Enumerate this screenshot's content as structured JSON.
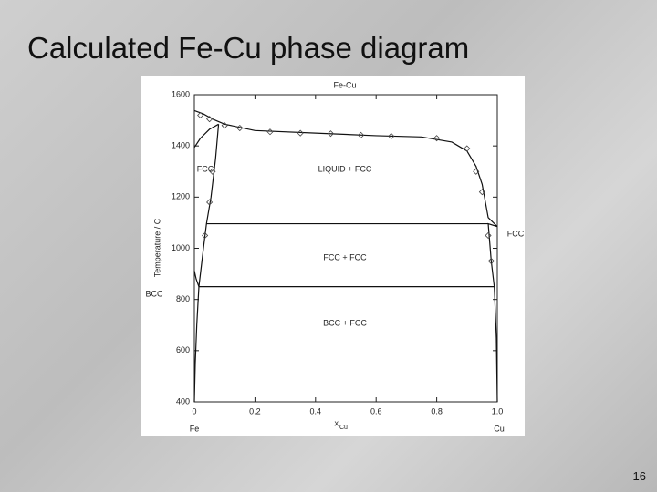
{
  "slide": {
    "title": "Calculated Fe-Cu phase diagram",
    "page_number": "16"
  },
  "chart_data": {
    "type": "line",
    "title": "Fe-Cu",
    "x_label": "x",
    "x_label_sub": "Cu",
    "y_label": "Temperature / C",
    "xlim": [
      0,
      1
    ],
    "ylim": [
      400,
      1600
    ],
    "xticks": [
      0,
      0.2,
      0.4,
      0.6,
      0.8,
      {
        "value": 1,
        "label": "1.0"
      }
    ],
    "yticks": [
      400,
      600,
      800,
      1000,
      1200,
      1400,
      1600
    ],
    "region_labels": [
      "FCC",
      "LIQUID + FCC",
      "FCC + FCC",
      "BCC + FCC"
    ],
    "side_labels": [
      "BCC",
      "FCC"
    ],
    "end_labels": [
      "Fe",
      "Cu"
    ],
    "series": [
      {
        "color": "#111111",
        "x": [
          0,
          0.03,
          0.06,
          0.1,
          0.2,
          0.4,
          0.6,
          0.75,
          0.85,
          0.9,
          0.93,
          0.95,
          0.97,
          1.0
        ],
        "values": [
          1538,
          1525,
          1505,
          1485,
          1460,
          1450,
          1440,
          1435,
          1415,
          1380,
          1320,
          1250,
          1120,
          1085
        ]
      },
      {
        "color": "#111111",
        "x": [
          0,
          0.02,
          0.05,
          0.08
        ],
        "values": [
          1394,
          1430,
          1465,
          1485
        ]
      },
      {
        "color": "#111111",
        "x": [
          0.08,
          0.07,
          0.055,
          0.04,
          0.03,
          0.015
        ],
        "values": [
          1485,
          1350,
          1200,
          1096,
          1000,
          850
        ]
      },
      {
        "color": "#111111",
        "x": [
          0.015,
          0.008,
          0.003,
          0
        ],
        "values": [
          850,
          700,
          550,
          400
        ]
      },
      {
        "color": "#111111",
        "x": [
          0,
          0.006,
          0.015
        ],
        "values": [
          912,
          880,
          850
        ]
      },
      {
        "color": "#111111",
        "x": [
          0.04,
          0.97
        ],
        "values": [
          1096,
          1096
        ]
      },
      {
        "color": "#111111",
        "x": [
          0.015,
          0.99
        ],
        "values": [
          850,
          850
        ]
      },
      {
        "color": "#111111",
        "x": [
          1.0,
          0.97,
          0.98,
          0.99,
          0.997,
          1.0
        ],
        "values": [
          1085,
          1096,
          950,
          850,
          650,
          400
        ]
      }
    ],
    "points": {
      "color": "#444444",
      "x": [
        0.02,
        0.05,
        0.1,
        0.15,
        0.25,
        0.35,
        0.45,
        0.55,
        0.65,
        0.8,
        0.9,
        0.93,
        0.95,
        0.06,
        0.05,
        0.035,
        0.97,
        0.98
      ],
      "values": [
        1520,
        1505,
        1480,
        1470,
        1455,
        1450,
        1448,
        1442,
        1438,
        1430,
        1390,
        1300,
        1220,
        1300,
        1180,
        1050,
        1050,
        950
      ]
    }
  }
}
